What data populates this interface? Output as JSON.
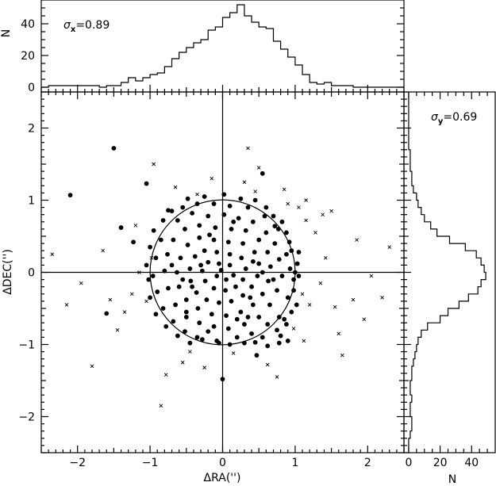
{
  "chart_data": [
    {
      "type": "scatter",
      "panel": "main",
      "xlabel": "ΔRA('')",
      "ylabel": "ΔDEC('')",
      "xlim": [
        -2.5,
        2.5
      ],
      "ylim": [
        -2.5,
        2.5
      ],
      "xticks": [
        -2,
        -1,
        0,
        1,
        2
      ],
      "yticks": [
        -2,
        -1,
        0,
        1,
        2
      ],
      "crosshair": [
        0,
        0
      ],
      "circle": {
        "center": [
          0,
          0
        ],
        "radius": 1
      },
      "series": [
        {
          "marker": "filled-circle",
          "points": [
            [
              -1.5,
              1.72
            ],
            [
              -2.1,
              1.07
            ],
            [
              -1.05,
              1.23
            ],
            [
              -1.6,
              -0.57
            ],
            [
              -1.4,
              0.62
            ],
            [
              -1.23,
              0.42
            ],
            [
              0.55,
              1.37
            ],
            [
              1.05,
              0.28
            ],
            [
              0.0,
              -1.48
            ],
            [
              0.47,
              -1.15
            ],
            [
              0.77,
              0.6
            ],
            [
              0.92,
              0.42
            ],
            [
              0.85,
              -0.65
            ],
            [
              0.9,
              -0.95
            ],
            [
              0.78,
              -0.98
            ],
            [
              0.8,
              -0.88
            ],
            [
              0.45,
              -0.97
            ],
            [
              -0.2,
              -0.82
            ],
            [
              -0.5,
              -0.55
            ],
            [
              -0.75,
              0.86
            ],
            [
              -0.55,
              0.9
            ],
            [
              -0.35,
              0.95
            ],
            [
              -0.12,
              0.95
            ],
            [
              0.1,
              0.92
            ],
            [
              0.35,
              0.9
            ],
            [
              0.58,
              0.78
            ],
            [
              0.72,
              0.64
            ],
            [
              0.88,
              0.25
            ],
            [
              0.93,
              0.05
            ],
            [
              0.98,
              -0.1
            ],
            [
              0.9,
              -0.35
            ],
            [
              0.78,
              -0.62
            ],
            [
              0.62,
              -0.72
            ],
            [
              0.4,
              -0.85
            ],
            [
              0.2,
              -0.9
            ],
            [
              -0.05,
              -0.98
            ],
            [
              -0.28,
              -0.93
            ],
            [
              -0.52,
              -0.82
            ],
            [
              -0.68,
              -0.68
            ],
            [
              -0.82,
              -0.5
            ],
            [
              -0.9,
              -0.27
            ],
            [
              -0.96,
              -0.05
            ],
            [
              -0.92,
              0.2
            ],
            [
              -0.85,
              0.45
            ],
            [
              -0.62,
              0.72
            ],
            [
              -0.42,
              0.82
            ],
            [
              -0.2,
              0.78
            ],
            [
              0.02,
              0.8
            ],
            [
              0.22,
              0.75
            ],
            [
              0.42,
              0.7
            ],
            [
              0.6,
              0.55
            ],
            [
              0.72,
              0.4
            ],
            [
              0.78,
              0.18
            ],
            [
              0.82,
              -0.05
            ],
            [
              0.75,
              -0.25
            ],
            [
              0.65,
              -0.45
            ],
            [
              0.5,
              -0.62
            ],
            [
              0.3,
              -0.72
            ],
            [
              0.08,
              -0.78
            ],
            [
              -0.12,
              -0.75
            ],
            [
              -0.32,
              -0.7
            ],
            [
              -0.5,
              -0.62
            ],
            [
              -0.65,
              -0.45
            ],
            [
              -0.75,
              -0.22
            ],
            [
              -0.8,
              0.02
            ],
            [
              -0.76,
              0.25
            ],
            [
              -0.68,
              0.45
            ],
            [
              -0.52,
              0.6
            ],
            [
              -0.32,
              0.65
            ],
            [
              -0.1,
              0.62
            ],
            [
              0.12,
              0.6
            ],
            [
              0.32,
              0.58
            ],
            [
              0.5,
              0.45
            ],
            [
              0.62,
              0.28
            ],
            [
              0.66,
              0.08
            ],
            [
              0.63,
              -0.12
            ],
            [
              0.55,
              -0.3
            ],
            [
              0.42,
              -0.45
            ],
            [
              0.25,
              -0.55
            ],
            [
              0.05,
              -0.6
            ],
            [
              -0.15,
              -0.58
            ],
            [
              -0.34,
              -0.5
            ],
            [
              -0.5,
              -0.38
            ],
            [
              -0.6,
              -0.2
            ],
            [
              -0.63,
              0.0
            ],
            [
              -0.58,
              0.2
            ],
            [
              -0.48,
              0.38
            ],
            [
              -0.32,
              0.48
            ],
            [
              -0.12,
              0.45
            ],
            [
              0.08,
              0.42
            ],
            [
              0.28,
              0.4
            ],
            [
              0.44,
              0.28
            ],
            [
              0.5,
              0.12
            ],
            [
              0.48,
              -0.05
            ],
            [
              0.4,
              -0.2
            ],
            [
              0.28,
              -0.32
            ],
            [
              0.12,
              -0.4
            ],
            [
              -0.05,
              -0.42
            ],
            [
              -0.22,
              -0.38
            ],
            [
              -0.36,
              -0.28
            ],
            [
              -0.44,
              -0.12
            ],
            [
              -0.45,
              0.05
            ],
            [
              -0.38,
              0.22
            ],
            [
              -0.25,
              0.3
            ],
            [
              -0.08,
              0.28
            ],
            [
              0.1,
              0.25
            ],
            [
              0.26,
              0.2
            ],
            [
              0.32,
              0.05
            ],
            [
              0.28,
              -0.1
            ],
            [
              0.18,
              -0.2
            ],
            [
              0.04,
              -0.25
            ],
            [
              -0.12,
              -0.22
            ],
            [
              -0.24,
              -0.12
            ],
            [
              -0.28,
              0.02
            ],
            [
              -0.2,
              0.14
            ],
            [
              -0.05,
              0.12
            ],
            [
              0.1,
              0.1
            ],
            [
              0.15,
              -0.04
            ],
            [
              0.05,
              -0.1
            ],
            [
              -0.08,
              -0.05
            ],
            [
              -0.02,
              0.03
            ],
            [
              0.6,
              0.9
            ],
            [
              0.7,
              0.78
            ],
            [
              0.95,
              0.3
            ],
            [
              1.0,
              0.0
            ],
            [
              0.98,
              -0.25
            ],
            [
              1.02,
              -0.45
            ],
            [
              0.95,
              -0.55
            ],
            [
              0.88,
              -0.72
            ],
            [
              0.75,
              -0.8
            ],
            [
              0.55,
              -0.9
            ],
            [
              0.62,
              -1.02
            ],
            [
              0.3,
              -0.98
            ],
            [
              0.1,
              -1.0
            ],
            [
              -0.08,
              -0.95
            ],
            [
              -0.35,
              -0.9
            ],
            [
              -0.45,
              -0.98
            ],
            [
              -0.62,
              -0.88
            ],
            [
              -0.78,
              -0.75
            ],
            [
              -0.92,
              -0.58
            ],
            [
              -1.0,
              -0.35
            ],
            [
              -1.02,
              -0.1
            ],
            [
              -1.05,
              0.1
            ],
            [
              -1.0,
              0.35
            ],
            [
              -0.95,
              0.58
            ],
            [
              -0.82,
              0.72
            ],
            [
              -0.7,
              0.85
            ],
            [
              -0.48,
              1.02
            ],
            [
              -0.25,
              1.05
            ],
            [
              0.02,
              1.08
            ],
            [
              0.25,
              1.02
            ],
            [
              0.45,
              1.0
            ],
            [
              0.82,
              0.7
            ],
            [
              0.88,
              0.55
            ],
            [
              1.03,
              0.12
            ],
            [
              1.05,
              -0.05
            ],
            [
              0.42,
              0.15
            ],
            [
              0.38,
              -0.35
            ],
            [
              -0.18,
              0.52
            ],
            [
              0.15,
              0.7
            ],
            [
              -0.42,
              -0.2
            ],
            [
              0.55,
              0.0
            ],
            [
              -0.7,
              0.1
            ],
            [
              0.7,
              -0.1
            ],
            [
              0.2,
              -0.65
            ],
            [
              -0.3,
              0.1
            ],
            [
              0.35,
              -0.62
            ],
            [
              -0.55,
              -0.1
            ]
          ]
        },
        {
          "marker": "cross",
          "points": [
            [
              -2.35,
              0.25
            ],
            [
              -2.15,
              -0.45
            ],
            [
              -1.95,
              -0.15
            ],
            [
              -1.8,
              -1.3
            ],
            [
              -1.65,
              0.3
            ],
            [
              -1.45,
              -0.8
            ],
            [
              -1.35,
              -0.55
            ],
            [
              -1.25,
              -0.3
            ],
            [
              -1.15,
              0.0
            ],
            [
              -0.98,
              0.2
            ],
            [
              -0.78,
              -1.42
            ],
            [
              -0.85,
              -1.85
            ],
            [
              -0.55,
              -1.25
            ],
            [
              -0.35,
              1.08
            ],
            [
              -0.15,
              1.3
            ],
            [
              0.3,
              1.25
            ],
            [
              0.5,
              1.45
            ],
            [
              0.62,
              -1.28
            ],
            [
              0.75,
              -1.45
            ],
            [
              0.85,
              1.15
            ],
            [
              0.98,
              -0.78
            ],
            [
              1.1,
              -0.3
            ],
            [
              1.15,
              0.72
            ],
            [
              1.2,
              -0.45
            ],
            [
              1.28,
              0.55
            ],
            [
              1.35,
              -0.15
            ],
            [
              1.42,
              0.2
            ],
            [
              1.55,
              -0.48
            ],
            [
              1.6,
              -0.85
            ],
            [
              1.65,
              -1.15
            ],
            [
              1.8,
              -0.38
            ],
            [
              1.85,
              0.45
            ],
            [
              1.95,
              -0.65
            ],
            [
              2.05,
              -0.05
            ],
            [
              2.2,
              -0.35
            ],
            [
              2.3,
              0.35
            ],
            [
              -0.25,
              -1.32
            ],
            [
              0.15,
              -1.12
            ],
            [
              -0.65,
              1.18
            ],
            [
              0.9,
              0.95
            ],
            [
              1.05,
              0.9
            ],
            [
              -1.05,
              -0.4
            ],
            [
              -1.2,
              0.65
            ],
            [
              -0.45,
              -1.1
            ],
            [
              0.45,
              1.12
            ],
            [
              1.12,
              -0.95
            ],
            [
              1.5,
              0.85
            ],
            [
              -1.55,
              -0.38
            ],
            [
              1.15,
              1.0
            ],
            [
              0.35,
              1.72
            ],
            [
              -0.95,
              1.5
            ],
            [
              1.38,
              0.8
            ]
          ]
        }
      ]
    },
    {
      "type": "histogram",
      "panel": "top",
      "annotation_symbol": "σ",
      "annotation_subscript": "x",
      "annotation_value": "=0.89",
      "ylabel": "N",
      "xlim": [
        -2.5,
        2.5
      ],
      "ylim": [
        -3,
        55
      ],
      "yticks": [
        0,
        20,
        40
      ],
      "bin_width": 0.1,
      "bin_start": -2.5,
      "counts": [
        0,
        1,
        1,
        1,
        1,
        1,
        1,
        1,
        0,
        1,
        1,
        3,
        6,
        4,
        6,
        8,
        9,
        13,
        18,
        22,
        25,
        28,
        30,
        36,
        38,
        44,
        47,
        52,
        45,
        41,
        38,
        37,
        29,
        24,
        19,
        14,
        8,
        3,
        2,
        3,
        1,
        1,
        1,
        0,
        0,
        0,
        0,
        0,
        0,
        0
      ]
    },
    {
      "type": "histogram",
      "panel": "right",
      "orientation": "horizontal",
      "annotation_symbol": "σ",
      "annotation_subscript": "y",
      "annotation_value": "=0.69",
      "xlabel": "N",
      "xlim": [
        -3,
        55
      ],
      "xticks": [
        0,
        20,
        40
      ],
      "ylim": [
        -2.5,
        2.5
      ],
      "bin_width": 0.1,
      "bin_start": -2.5,
      "counts": [
        0,
        0,
        1,
        2,
        2,
        1,
        1,
        2,
        1,
        1,
        2,
        2,
        3,
        4,
        5,
        6,
        8,
        12,
        20,
        25,
        32,
        38,
        44,
        46,
        49,
        48,
        46,
        43,
        36,
        26,
        18,
        14,
        10,
        8,
        6,
        5,
        3,
        2,
        2,
        1,
        1,
        1,
        0,
        0,
        0,
        0,
        0,
        0,
        0,
        0
      ]
    }
  ]
}
